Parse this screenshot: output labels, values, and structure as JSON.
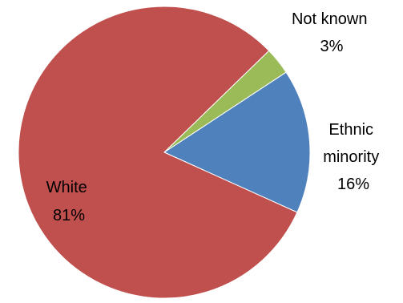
{
  "chart_data": {
    "type": "pie",
    "slices": [
      {
        "label_lines": [
          "Ethnic",
          "minority"
        ],
        "value": 16,
        "value_label": "16%",
        "color": "#4F81BD"
      },
      {
        "label_lines": [
          "White"
        ],
        "value": 81,
        "value_label": "81%",
        "color": "#C0504D"
      },
      {
        "label_lines": [
          "Not known"
        ],
        "value": 3,
        "value_label": "3%",
        "color": "#9BBB59"
      }
    ]
  }
}
